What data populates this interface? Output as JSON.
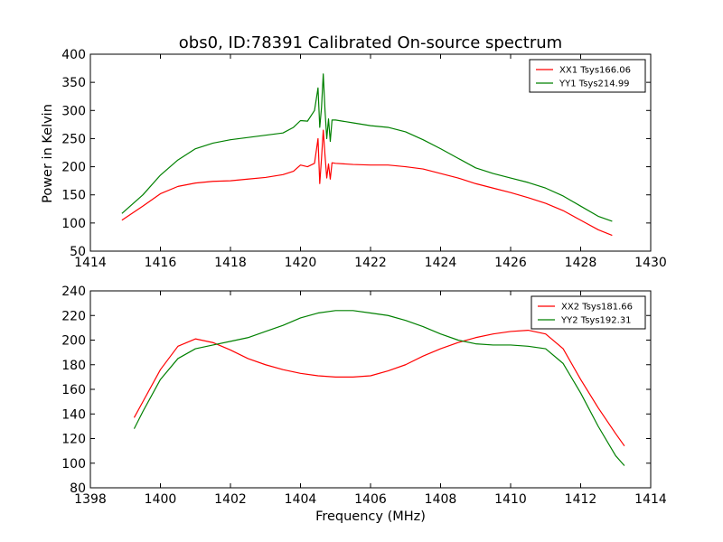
{
  "chart_data": [
    {
      "type": "line",
      "title": "obs0, ID:78391 Calibrated On-source spectrum",
      "xlabel": "",
      "ylabel": "Power in Kelvin",
      "xlim": [
        1414,
        1430
      ],
      "ylim": [
        50,
        400
      ],
      "xticks": [
        "1414",
        "1416",
        "1418",
        "1420",
        "1422",
        "1424",
        "1426",
        "1428",
        "1430"
      ],
      "yticks": [
        "50",
        "100",
        "150",
        "200",
        "250",
        "300",
        "350",
        "400"
      ],
      "legend_position": "top-right",
      "series": [
        {
          "name": "XX1 Tsys166.06",
          "color": "#ff0000",
          "x": [
            1414.9,
            1415.5,
            1416.0,
            1416.5,
            1417.0,
            1417.5,
            1418.0,
            1418.5,
            1419.0,
            1419.5,
            1419.8,
            1420.0,
            1420.2,
            1420.4,
            1420.5,
            1420.55,
            1420.6,
            1420.65,
            1420.7,
            1420.75,
            1420.8,
            1420.85,
            1420.9,
            1421.0,
            1421.5,
            1422.0,
            1422.5,
            1423.0,
            1423.5,
            1424.0,
            1424.5,
            1425.0,
            1425.5,
            1426.0,
            1426.5,
            1427.0,
            1427.5,
            1428.0,
            1428.5,
            1428.9
          ],
          "y": [
            105,
            130,
            152,
            165,
            171,
            174,
            175,
            178,
            181,
            186,
            192,
            203,
            200,
            206,
            250,
            170,
            215,
            265,
            220,
            180,
            205,
            178,
            207,
            206,
            204,
            203,
            203,
            200,
            196,
            188,
            180,
            170,
            162,
            154,
            145,
            135,
            122,
            105,
            88,
            78
          ]
        },
        {
          "name": "YY1 Tsys214.99",
          "color": "#008000",
          "x": [
            1414.9,
            1415.5,
            1416.0,
            1416.5,
            1417.0,
            1417.5,
            1418.0,
            1418.5,
            1419.0,
            1419.5,
            1419.8,
            1420.0,
            1420.2,
            1420.4,
            1420.5,
            1420.55,
            1420.6,
            1420.65,
            1420.7,
            1420.75,
            1420.8,
            1420.85,
            1420.9,
            1421.0,
            1421.5,
            1422.0,
            1422.5,
            1423.0,
            1423.5,
            1424.0,
            1424.5,
            1425.0,
            1425.5,
            1426.0,
            1426.5,
            1427.0,
            1427.5,
            1428.0,
            1428.5,
            1428.9
          ],
          "y": [
            117,
            150,
            185,
            212,
            232,
            242,
            248,
            252,
            256,
            260,
            270,
            282,
            281,
            300,
            340,
            270,
            305,
            365,
            300,
            250,
            285,
            245,
            283,
            283,
            278,
            273,
            270,
            262,
            248,
            232,
            215,
            198,
            188,
            180,
            172,
            162,
            148,
            130,
            112,
            103
          ]
        }
      ]
    },
    {
      "type": "line",
      "title": "",
      "xlabel": "Frequency (MHz)",
      "ylabel": "",
      "xlim": [
        1398,
        1414
      ],
      "ylim": [
        80,
        240
      ],
      "xticks": [
        "1398",
        "1400",
        "1402",
        "1404",
        "1406",
        "1408",
        "1410",
        "1412",
        "1414"
      ],
      "yticks": [
        "80",
        "100",
        "120",
        "140",
        "160",
        "180",
        "200",
        "220",
        "240"
      ],
      "legend_position": "top-right",
      "series": [
        {
          "name": "XX2 Tsys181.66",
          "color": "#ff0000",
          "x": [
            1399.25,
            1399.5,
            1400.0,
            1400.5,
            1401.0,
            1401.5,
            1402.0,
            1402.5,
            1403.0,
            1403.5,
            1404.0,
            1404.5,
            1405.0,
            1405.5,
            1406.0,
            1406.5,
            1407.0,
            1407.5,
            1408.0,
            1408.5,
            1409.0,
            1409.5,
            1410.0,
            1410.5,
            1411.0,
            1411.5,
            1412.0,
            1412.5,
            1413.0,
            1413.25
          ],
          "y": [
            137,
            150,
            176,
            195,
            201,
            198,
            192,
            185,
            180,
            176,
            173,
            171,
            170,
            170,
            171,
            175,
            180,
            187,
            193,
            198,
            202,
            205,
            207,
            208,
            205,
            193,
            168,
            145,
            124,
            114
          ]
        },
        {
          "name": "YY2 Tsys192.31",
          "color": "#008000",
          "x": [
            1399.25,
            1399.5,
            1400.0,
            1400.5,
            1401.0,
            1401.5,
            1402.0,
            1402.5,
            1403.0,
            1403.5,
            1404.0,
            1404.5,
            1405.0,
            1405.5,
            1406.0,
            1406.5,
            1407.0,
            1407.5,
            1408.0,
            1408.5,
            1409.0,
            1409.5,
            1410.0,
            1410.5,
            1411.0,
            1411.5,
            1412.0,
            1412.5,
            1413.0,
            1413.25
          ],
          "y": [
            128,
            142,
            168,
            185,
            193,
            196,
            199,
            202,
            207,
            212,
            218,
            222,
            224,
            224,
            222,
            220,
            216,
            211,
            205,
            200,
            197,
            196,
            196,
            195,
            193,
            181,
            157,
            130,
            106,
            98
          ]
        }
      ]
    }
  ]
}
